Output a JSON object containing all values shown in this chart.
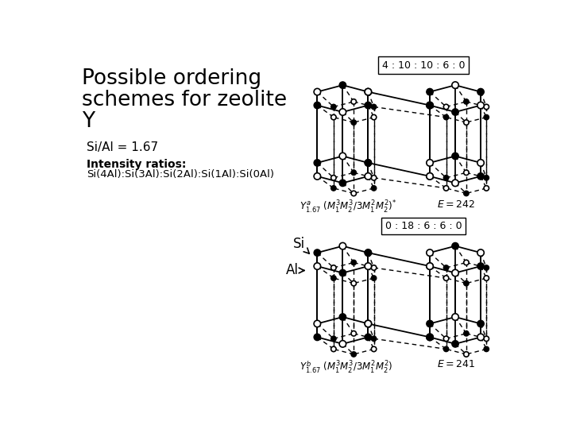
{
  "title_line1": "Possible ordering",
  "title_line2": "schemes for zeolite",
  "title_line3": "Y",
  "si_al_label": "Si/Al = 1.67",
  "intensity_label1": "Intensity ratios:",
  "intensity_label2": "Si(4Al):Si(3Al):Si(2Al):Si(1Al):Si(0Al)",
  "box1_label": "4 : 10 : 10 : 6 : 0",
  "box2_label": "0 : 18 : 6 : 6 : 0",
  "bg_color": "#ffffff",
  "text_color": "#000000"
}
